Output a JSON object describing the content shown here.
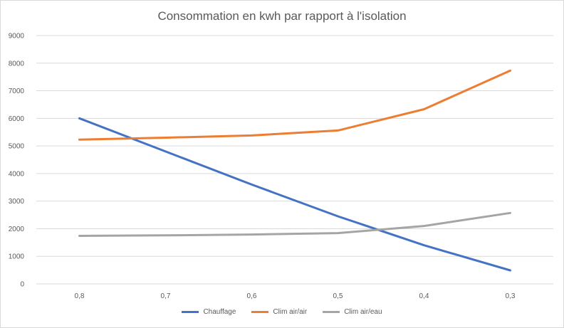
{
  "chart_data": {
    "type": "line",
    "title": "Consommation en kwh par rapport à l'isolation",
    "xlabel": "",
    "ylabel": "",
    "categories": [
      "0,8",
      "0,7",
      "0,6",
      "0,5",
      "0,4",
      "0,3"
    ],
    "ylim": [
      0,
      9000
    ],
    "yticks": [
      0,
      1000,
      2000,
      3000,
      4000,
      5000,
      6000,
      7000,
      8000,
      9000
    ],
    "grid": true,
    "legend_position": "bottom",
    "series": [
      {
        "name": "Chauffage",
        "color": "#4472c4",
        "values": [
          6000,
          4800,
          3600,
          2450,
          1400,
          490
        ]
      },
      {
        "name": "Clim air/air",
        "color": "#ed7d31",
        "values": [
          5230,
          5300,
          5380,
          5560,
          6330,
          7730
        ]
      },
      {
        "name": "Clim air/eau",
        "color": "#a5a5a5",
        "values": [
          1740,
          1760,
          1790,
          1840,
          2100,
          2570
        ]
      }
    ]
  }
}
